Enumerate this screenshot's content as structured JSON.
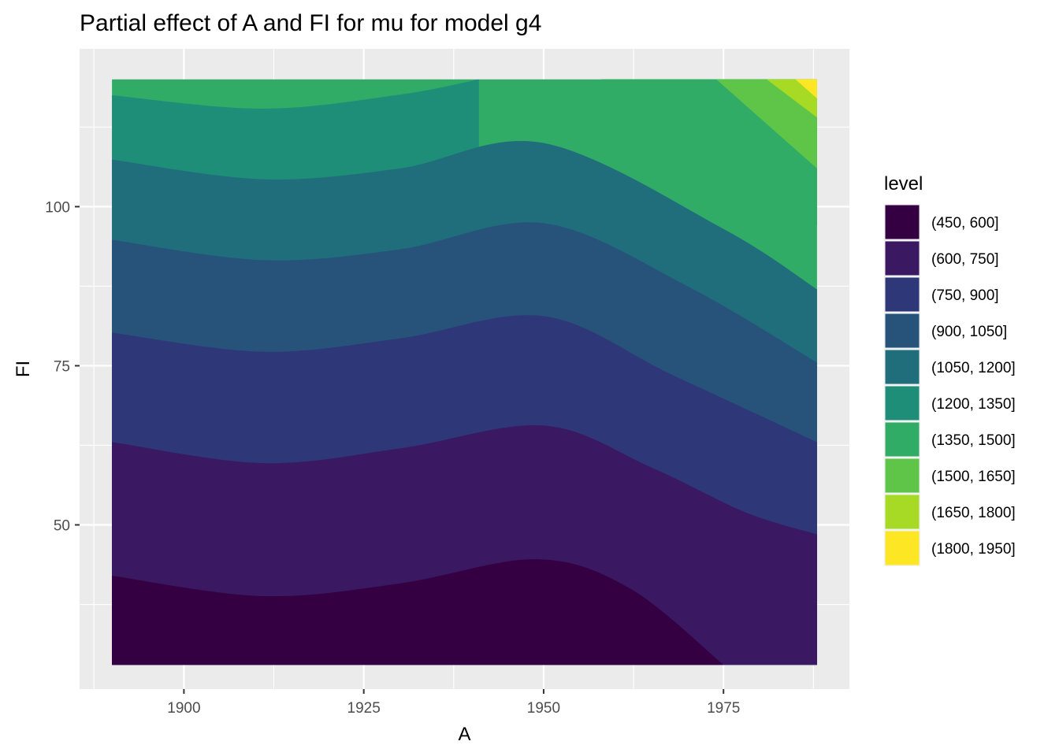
{
  "chart_data": {
    "type": "contour",
    "title": "Partial effect of A and FI for mu for model g4",
    "xlabel": "A",
    "ylabel": "FI",
    "xlim": [
      1885.5,
      1992.5
    ],
    "ylim": [
      24.2,
      124.8
    ],
    "data_extent": {
      "x": [
        1890,
        1988
      ],
      "y": [
        28,
        120
      ]
    },
    "x_ticks": [
      1900,
      1925,
      1950,
      1975
    ],
    "y_ticks": [
      50,
      75,
      100
    ],
    "grid": true,
    "legend": {
      "title": "level",
      "position": "right"
    },
    "levels": [
      {
        "label": "(450, 600]",
        "color": "#340042"
      },
      {
        "label": "(600, 750]",
        "color": "#3A1862"
      },
      {
        "label": "(750, 900]",
        "color": "#2E3777"
      },
      {
        "label": "(900, 1050]",
        "color": "#27537B"
      },
      {
        "label": "(1050, 1200]",
        "color": "#206E7C"
      },
      {
        "label": "(1200, 1350]",
        "color": "#1F8E79"
      },
      {
        "label": "(1350, 1500]",
        "color": "#30AC66"
      },
      {
        "label": "(1500, 1650]",
        "color": "#5EC549"
      },
      {
        "label": "(1650, 1800]",
        "color": "#A6DA24"
      },
      {
        "label": "(1800, 1950]",
        "color": "#FDE725"
      }
    ],
    "contour_lines": [
      {
        "level": 600,
        "points": [
          [
            1890,
            42.0
          ],
          [
            1911,
            38.8
          ],
          [
            1930,
            40.8
          ],
          [
            1949,
            44.6
          ],
          [
            1962,
            40.0
          ],
          [
            1975,
            28.0
          ]
        ]
      },
      {
        "level": 750,
        "points": [
          [
            1890,
            63.0
          ],
          [
            1911,
            59.7
          ],
          [
            1930,
            62.0
          ],
          [
            1950,
            65.6
          ],
          [
            1965,
            59.0
          ],
          [
            1978,
            52.0
          ],
          [
            1988,
            48.5
          ]
        ]
      },
      {
        "level": 900,
        "points": [
          [
            1890,
            80.2
          ],
          [
            1911,
            77.2
          ],
          [
            1930,
            79.3
          ],
          [
            1950,
            82.8
          ],
          [
            1968,
            73.5
          ],
          [
            1988,
            63.0
          ]
        ]
      },
      {
        "level": 1050,
        "points": [
          [
            1890,
            94.8
          ],
          [
            1911,
            91.6
          ],
          [
            1930,
            93.3
          ],
          [
            1950,
            97.4
          ],
          [
            1970,
            87.5
          ],
          [
            1988,
            75.5
          ]
        ]
      },
      {
        "level": 1200,
        "points": [
          [
            1890,
            107.4
          ],
          [
            1911,
            104.3
          ],
          [
            1930,
            106.0
          ],
          [
            1950,
            110.0
          ],
          [
            1975,
            96.5
          ],
          [
            1988,
            87.0
          ]
        ]
      },
      {
        "level": 1350,
        "points": [
          [
            1890,
            117.5
          ],
          [
            1911,
            115.4
          ],
          [
            1930,
            117.6
          ],
          [
            1941,
            120.0
          ]
        ]
      },
      {
        "level": 1350,
        "points": [
          [
            1958,
            120.0
          ],
          [
            1975,
            111.5
          ],
          [
            1988,
            97.0
          ]
        ]
      },
      {
        "level": 1500,
        "points": [
          [
            1974,
            120.0
          ],
          [
            1988,
            106.0
          ]
        ]
      },
      {
        "level": 1650,
        "points": [
          [
            1981,
            120.0
          ],
          [
            1988,
            114.0
          ]
        ]
      },
      {
        "level": 1800,
        "points": [
          [
            1985,
            120.0
          ],
          [
            1988,
            117.0
          ]
        ]
      }
    ]
  }
}
